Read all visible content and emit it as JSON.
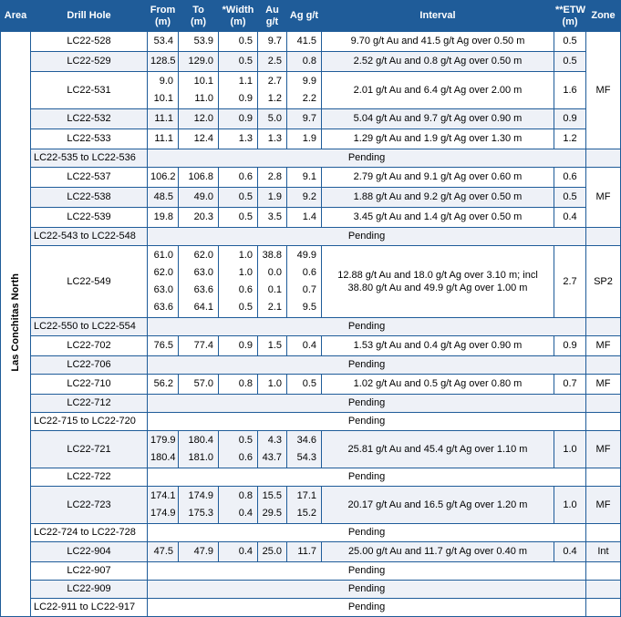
{
  "headers": [
    "Area",
    "Drill Hole",
    "From\n(m)",
    "To\n(m)",
    "*Width\n(m)",
    "Au g/t",
    "Ag g/t",
    "Interval",
    "**ETW\n(m)",
    "Zone"
  ],
  "area_label": "Las Conchitas North",
  "pending_label": "Pending",
  "rows": [
    {
      "hole": "LC22-528",
      "from": [
        "53.4"
      ],
      "to": [
        "53.9"
      ],
      "width": [
        "0.5"
      ],
      "au": [
        "9.7"
      ],
      "ag": [
        "41.5"
      ],
      "interval": "9.70 g/t Au and 41.5 g/t Ag over 0.50 m",
      "etw": "0.5",
      "zone": ""
    },
    {
      "hole": "LC22-529",
      "from": [
        "128.5"
      ],
      "to": [
        "129.0"
      ],
      "width": [
        "0.5"
      ],
      "au": [
        "2.5"
      ],
      "ag": [
        "0.8"
      ],
      "interval": "2.52 g/t Au and 0.8 g/t Ag over 0.50 m",
      "etw": "0.5",
      "zone": ""
    },
    {
      "hole": "LC22-531",
      "from": [
        "9.0",
        "10.1"
      ],
      "to": [
        "10.1",
        "11.0"
      ],
      "width": [
        "1.1",
        "0.9"
      ],
      "au": [
        "2.7",
        "1.2"
      ],
      "ag": [
        "9.9",
        "2.2"
      ],
      "interval": "2.01 g/t Au and 6.4 g/t Ag over 2.00 m",
      "etw": "1.6",
      "zone": "MF"
    },
    {
      "hole": "LC22-532",
      "from": [
        "11.1"
      ],
      "to": [
        "12.0"
      ],
      "width": [
        "0.9"
      ],
      "au": [
        "5.0"
      ],
      "ag": [
        "9.7"
      ],
      "interval": "5.04 g/t Au and 9.7 g/t Ag over 0.90 m",
      "etw": "0.9",
      "zone": ""
    },
    {
      "hole": "LC22-533",
      "from": [
        "11.1"
      ],
      "to": [
        "12.4"
      ],
      "width": [
        "1.3"
      ],
      "au": [
        "1.3"
      ],
      "ag": [
        "1.9"
      ],
      "interval": "1.29 g/t Au and 1.9 g/t Ag over 1.30 m",
      "etw": "1.2",
      "zone": ""
    },
    {
      "hole": "LC22-535 to LC22-536",
      "pending": true
    },
    {
      "hole": "LC22-537",
      "from": [
        "106.2"
      ],
      "to": [
        "106.8"
      ],
      "width": [
        "0.6"
      ],
      "au": [
        "2.8"
      ],
      "ag": [
        "9.1"
      ],
      "interval": "2.79 g/t Au and 9.1 g/t Ag over 0.60 m",
      "etw": "0.6",
      "zone": ""
    },
    {
      "hole": "LC22-538",
      "from": [
        "48.5"
      ],
      "to": [
        "49.0"
      ],
      "width": [
        "0.5"
      ],
      "au": [
        "1.9"
      ],
      "ag": [
        "9.2"
      ],
      "interval": "1.88 g/t Au and 9.2 g/t Ag over 0.50 m",
      "etw": "0.5",
      "zone": "MF"
    },
    {
      "hole": "LC22-539",
      "from": [
        "19.8"
      ],
      "to": [
        "20.3"
      ],
      "width": [
        "0.5"
      ],
      "au": [
        "3.5"
      ],
      "ag": [
        "1.4"
      ],
      "interval": "3.45 g/t Au and 1.4 g/t Ag over 0.50 m",
      "etw": "0.4",
      "zone": ""
    },
    {
      "hole": "LC22-543 to LC22-548",
      "pending": true
    },
    {
      "hole": "LC22-549",
      "from": [
        "61.0",
        "62.0",
        "63.0",
        "63.6"
      ],
      "to": [
        "62.0",
        "63.0",
        "63.6",
        "64.1"
      ],
      "width": [
        "1.0",
        "1.0",
        "0.6",
        "0.5"
      ],
      "au": [
        "38.8",
        "0.0",
        "0.1",
        "2.1"
      ],
      "ag": [
        "49.9",
        "0.6",
        "0.7",
        "9.5"
      ],
      "interval": "12.88 g/t Au and 18.0 g/t Ag over 3.10 m; incl 38.80 g/t Au and 49.9 g/t Ag over 1.00 m",
      "etw": "2.7",
      "zone": "SP2"
    },
    {
      "hole": "LC22-550 to LC22-554",
      "pending": true
    },
    {
      "hole": "LC22-702",
      "from": [
        "76.5"
      ],
      "to": [
        "77.4"
      ],
      "width": [
        "0.9"
      ],
      "au": [
        "1.5"
      ],
      "ag": [
        "0.4"
      ],
      "interval": "1.53 g/t Au and 0.4 g/t Ag over 0.90 m",
      "etw": "0.9",
      "zone": "MF"
    },
    {
      "hole": "LC22-706",
      "pending": true
    },
    {
      "hole": "LC22-710",
      "from": [
        "56.2"
      ],
      "to": [
        "57.0"
      ],
      "width": [
        "0.8"
      ],
      "au": [
        "1.0"
      ],
      "ag": [
        "0.5"
      ],
      "interval": "1.02 g/t Au and 0.5 g/t Ag over 0.80 m",
      "etw": "0.7",
      "zone": "MF"
    },
    {
      "hole": "LC22-712",
      "pending": true
    },
    {
      "hole": "LC22-715 to LC22-720",
      "pending": true
    },
    {
      "hole": "LC22-721",
      "from": [
        "179.9",
        "180.4"
      ],
      "to": [
        "180.4",
        "181.0"
      ],
      "width": [
        "0.5",
        "0.6"
      ],
      "au": [
        "4.3",
        "43.7"
      ],
      "ag": [
        "34.6",
        "54.3"
      ],
      "interval": "25.81 g/t Au and 45.4 g/t Ag over 1.10 m",
      "etw": "1.0",
      "zone": "MF"
    },
    {
      "hole": "LC22-722",
      "pending": true
    },
    {
      "hole": "LC22-723",
      "from": [
        "174.1",
        "174.9"
      ],
      "to": [
        "174.9",
        "175.3"
      ],
      "width": [
        "0.8",
        "0.4"
      ],
      "au": [
        "15.5",
        "29.5"
      ],
      "ag": [
        "17.1",
        "15.2"
      ],
      "interval": "20.17 g/t Au and 16.5 g/t Ag over 1.20 m",
      "etw": "1.0",
      "zone": "MF"
    },
    {
      "hole": "LC22-724 to LC22-728",
      "pending": true
    },
    {
      "hole": "LC22-904",
      "from": [
        "47.5"
      ],
      "to": [
        "47.9"
      ],
      "width": [
        "0.4"
      ],
      "au": [
        "25.0"
      ],
      "ag": [
        "11.7"
      ],
      "interval": "25.00 g/t Au and 11.7 g/t Ag over 0.40 m",
      "etw": "0.4",
      "zone": "Int"
    },
    {
      "hole": "LC22-907",
      "pending": true
    },
    {
      "hole": "LC22-909",
      "pending": true
    },
    {
      "hole": "LC22-911 to LC22-917",
      "pending": true
    }
  ],
  "colors": {
    "header_bg": "#1f5c99",
    "border": "#1f5c99",
    "row_shade": "#eef1f7"
  }
}
